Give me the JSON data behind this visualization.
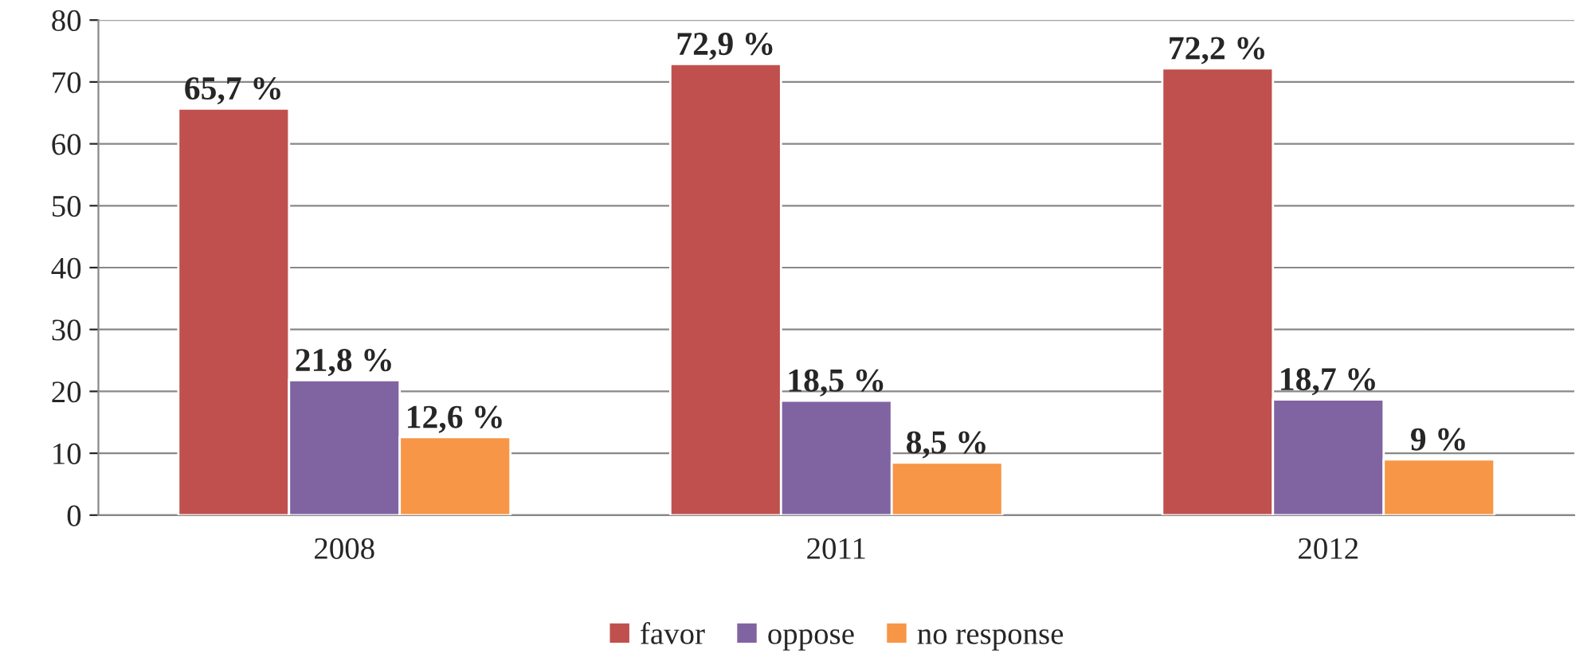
{
  "chart_data": {
    "type": "bar",
    "categories": [
      "2008",
      "2011",
      "2012"
    ],
    "series": [
      {
        "name": "favor",
        "color": "#c0504d",
        "values": [
          65.7,
          72.9,
          72.2
        ],
        "value_labels": [
          "65,7 %",
          "72,9 %",
          "72,2 %"
        ]
      },
      {
        "name": "oppose",
        "color": "#8064a2",
        "values": [
          21.8,
          18.5,
          18.7
        ],
        "value_labels": [
          "21,8 %",
          "18,5 %",
          "18,7 %"
        ]
      },
      {
        "name": "no response",
        "color": "#f79646",
        "values": [
          12.6,
          8.5,
          9
        ],
        "value_labels": [
          "12,6 %",
          "8,5 %",
          "9 %"
        ]
      }
    ],
    "ylim": [
      0,
      80
    ],
    "yticks": [
      0,
      10,
      20,
      30,
      40,
      50,
      60,
      70,
      80
    ],
    "grid": "y",
    "legend": "bottom"
  }
}
